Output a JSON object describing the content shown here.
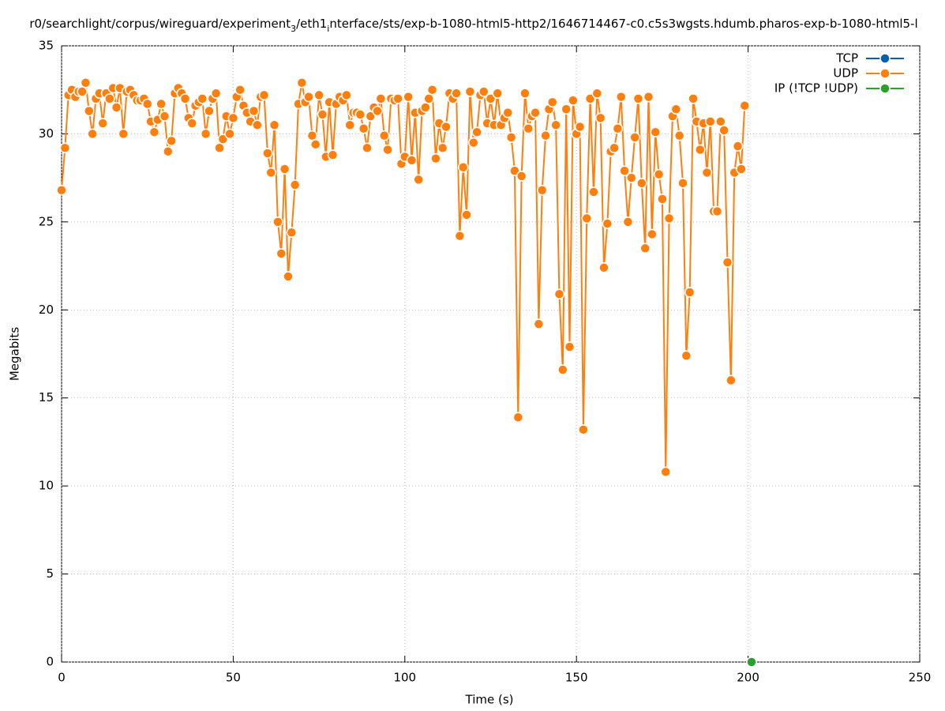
{
  "chart_data": {
    "type": "line",
    "title": [
      "r0/searchlight/corpus/wireguard/experiment",
      "3",
      "/eth1",
      "i",
      "nterface/sts/exp-b-1080-html5-http2/1646714467-c0.c5s3wgsts.hdumb.pharos-exp-b-1080-html5-l"
    ],
    "xlabel": "Time (s)",
    "ylabel": "Megabits",
    "xlim": [
      0,
      250
    ],
    "xticks": [
      0,
      50,
      100,
      150,
      200,
      250
    ],
    "ylim": [
      0,
      35
    ],
    "yticks": [
      0,
      5,
      10,
      15,
      20,
      25,
      30,
      35
    ],
    "grid": true,
    "legend": "top-right",
    "series": [
      {
        "name": "TCP",
        "color": "#0060ad",
        "x": [],
        "values": []
      },
      {
        "name": "UDP",
        "color": "#ff7f0e",
        "x": [
          0,
          1,
          2,
          3,
          4,
          5,
          6,
          7,
          8,
          9,
          10,
          11,
          12,
          13,
          14,
          15,
          16,
          17,
          18,
          19,
          20,
          21,
          22,
          23,
          24,
          25,
          26,
          27,
          28,
          29,
          30,
          31,
          32,
          33,
          34,
          35,
          36,
          37,
          38,
          39,
          40,
          41,
          42,
          43,
          44,
          45,
          46,
          47,
          48,
          49,
          50,
          51,
          52,
          53,
          54,
          55,
          56,
          57,
          58,
          59,
          60,
          61,
          62,
          63,
          64,
          65,
          66,
          67,
          68,
          69,
          70,
          71,
          72,
          73,
          74,
          75,
          76,
          77,
          78,
          79,
          80,
          81,
          82,
          83,
          84,
          85,
          86,
          87,
          88,
          89,
          90,
          91,
          92,
          93,
          94,
          95,
          96,
          97,
          98,
          99,
          100,
          101,
          102,
          103,
          104,
          105,
          106,
          107,
          108,
          109,
          110,
          111,
          112,
          113,
          114,
          115,
          116,
          117,
          118,
          119,
          120,
          121,
          122,
          123,
          124,
          125,
          126,
          127,
          128,
          129,
          130,
          131,
          132,
          133,
          134,
          135,
          136,
          137,
          138,
          139,
          140,
          141,
          142,
          143,
          144,
          145,
          146,
          147,
          148,
          149,
          150,
          151,
          152,
          153,
          154,
          155,
          156,
          157,
          158,
          159,
          160,
          161,
          162,
          163,
          164,
          165,
          166,
          167,
          168,
          169,
          170,
          171,
          172,
          173,
          174,
          175,
          176,
          177,
          178,
          179,
          180,
          181,
          182,
          183,
          184,
          185,
          186,
          187,
          188,
          189,
          190,
          191,
          192,
          193,
          194,
          195,
          196,
          197,
          198,
          199
        ],
        "values": [
          26.8,
          29.2,
          32.2,
          32.5,
          32.1,
          32.4,
          32.4,
          32.9,
          31.3,
          30.0,
          32.0,
          32.3,
          30.6,
          32.3,
          32.0,
          32.6,
          31.5,
          32.6,
          30.0,
          32.4,
          32.5,
          32.2,
          31.9,
          31.9,
          32.0,
          31.7,
          30.7,
          30.1,
          30.8,
          31.7,
          31.0,
          29.0,
          29.6,
          32.3,
          32.6,
          32.3,
          32.0,
          30.9,
          30.6,
          31.6,
          31.8,
          32.0,
          30.0,
          31.3,
          32.0,
          32.3,
          29.2,
          29.7,
          31.0,
          30.0,
          30.9,
          32.1,
          32.5,
          31.6,
          31.2,
          30.7,
          31.3,
          30.5,
          32.1,
          32.2,
          28.9,
          27.8,
          30.5,
          25.0,
          23.2,
          28.0,
          21.9,
          24.4,
          27.1,
          31.7,
          32.9,
          31.8,
          32.1,
          29.9,
          29.4,
          32.2,
          31.1,
          28.7,
          31.8,
          28.8,
          31.7,
          32.1,
          31.9,
          32.2,
          30.5,
          31.2,
          31.2,
          31.1,
          30.3,
          29.2,
          31.0,
          31.5,
          31.3,
          32.0,
          29.9,
          29.1,
          32.0,
          31.9,
          32.0,
          28.3,
          28.7,
          32.1,
          28.5,
          31.2,
          27.4,
          31.3,
          31.5,
          32.0,
          32.5,
          28.6,
          30.6,
          29.2,
          30.4,
          32.3,
          32.0,
          32.3,
          24.2,
          28.1,
          25.4,
          32.4,
          29.5,
          30.1,
          32.2,
          32.4,
          30.6,
          32.0,
          30.5,
          32.3,
          30.5,
          30.9,
          31.2,
          29.8,
          27.9,
          13.9,
          27.6,
          32.3,
          30.3,
          31.0,
          31.2,
          19.2,
          26.8,
          29.9,
          31.4,
          31.8,
          30.5,
          20.9,
          16.6,
          31.4,
          17.9,
          31.9,
          30.0,
          30.4,
          13.2,
          25.2,
          32.0,
          26.7,
          32.3,
          30.9,
          22.4,
          24.9,
          29.0,
          29.2,
          30.3,
          32.1,
          27.9,
          25.0,
          27.5,
          29.8,
          32.0,
          27.2,
          23.5,
          32.1,
          24.3,
          30.1,
          27.7,
          26.3,
          10.8,
          25.2,
          31.0,
          31.4,
          29.9,
          27.2,
          17.4,
          21.0,
          32.0,
          30.7,
          29.1,
          30.6,
          27.8,
          30.7,
          25.6,
          25.6,
          30.7,
          30.2,
          22.7,
          16.0,
          27.8,
          29.3,
          28.0,
          31.6
        ]
      },
      {
        "name": "IP (!TCP  !UDP)",
        "color": "#2ca02c",
        "x": [
          201
        ],
        "values": [
          0
        ]
      }
    ]
  }
}
